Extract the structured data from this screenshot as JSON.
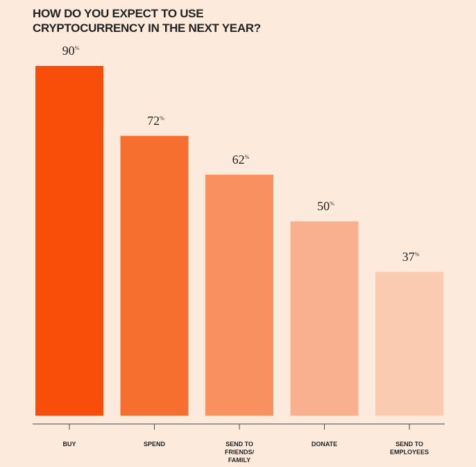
{
  "chart_data": {
    "type": "bar",
    "title_lines": [
      "HOW DO YOU EXPECT TO USE",
      "CRYPTOCURRENCY IN THE NEXT YEAR?"
    ],
    "categories": [
      [
        "BUY"
      ],
      [
        "SPEND"
      ],
      [
        "SEND TO",
        "FRIENDS/",
        "FAMILY"
      ],
      [
        "DONATE"
      ],
      [
        "SEND TO",
        "EMPLOYEES"
      ]
    ],
    "values": [
      90,
      72,
      62,
      50,
      37
    ],
    "value_unit": "%",
    "ylim": [
      0,
      90
    ],
    "grid": false,
    "legend": "none",
    "colors": [
      "#f94e09",
      "#f76f2f",
      "#f89060",
      "#f9b08e",
      "#facbb0"
    ],
    "axis_color": "#444444",
    "text_color": "#222222"
  }
}
